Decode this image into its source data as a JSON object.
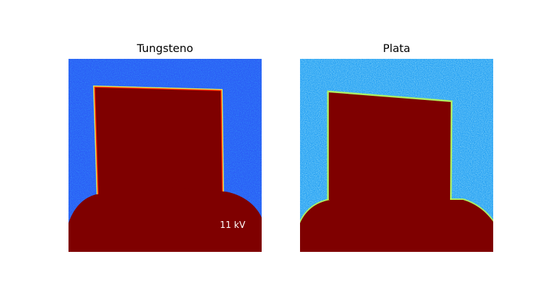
{
  "panels": [
    {
      "title": "Tungsteno",
      "annotation": "11 kV",
      "bg_color": "#2a5ef5",
      "fg_color": "#7f0000"
    },
    {
      "title": "Plata",
      "annotation": "",
      "bg_color": "#1f9cf2",
      "fg_color": "#7f0000"
    }
  ]
}
